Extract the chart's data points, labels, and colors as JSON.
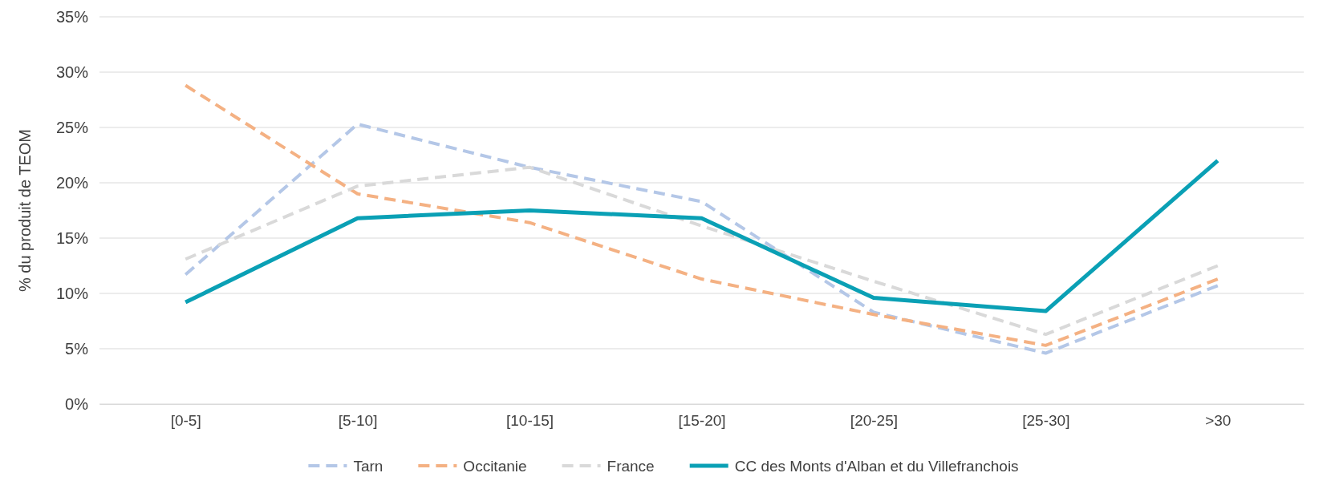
{
  "chart_data": {
    "type": "line",
    "ylabel": "% du produit de TEOM",
    "categories": [
      "[0-5]",
      "[5-10]",
      "[10-15]",
      "[15-20]",
      "[20-25]",
      "[25-30]",
      ">30"
    ],
    "series": [
      {
        "name": "Tarn",
        "color": "#b4c7e7",
        "line_style": "dashed",
        "values": [
          11.7,
          25.3,
          21.4,
          18.3,
          8.3,
          4.6,
          10.7
        ]
      },
      {
        "name": "Occitanie",
        "color": "#f4b183",
        "line_style": "dashed",
        "values": [
          28.8,
          19.0,
          16.4,
          11.3,
          8.1,
          5.3,
          11.3
        ]
      },
      {
        "name": "France",
        "color": "#d9d9d9",
        "line_style": "dashed",
        "values": [
          13.1,
          19.7,
          21.4,
          16.1,
          11.1,
          6.3,
          12.5
        ]
      },
      {
        "name": "CC des Monts d'Alban et du Villefranchois",
        "color": "#0aa0b5",
        "line_style": "solid",
        "values": [
          9.2,
          16.8,
          17.5,
          16.8,
          9.6,
          8.4,
          22.0
        ]
      }
    ],
    "ylim": [
      0,
      35
    ],
    "yticks": [
      {
        "value": 0,
        "label": "0%"
      },
      {
        "value": 5,
        "label": "5%"
      },
      {
        "value": 10,
        "label": "10%"
      },
      {
        "value": 15,
        "label": "15%"
      },
      {
        "value": 20,
        "label": "20%"
      },
      {
        "value": 25,
        "label": "25%"
      },
      {
        "value": 30,
        "label": "30%"
      },
      {
        "value": 35,
        "label": "35%"
      }
    ],
    "grid": "y",
    "legend": "bottom",
    "marker": "none"
  }
}
